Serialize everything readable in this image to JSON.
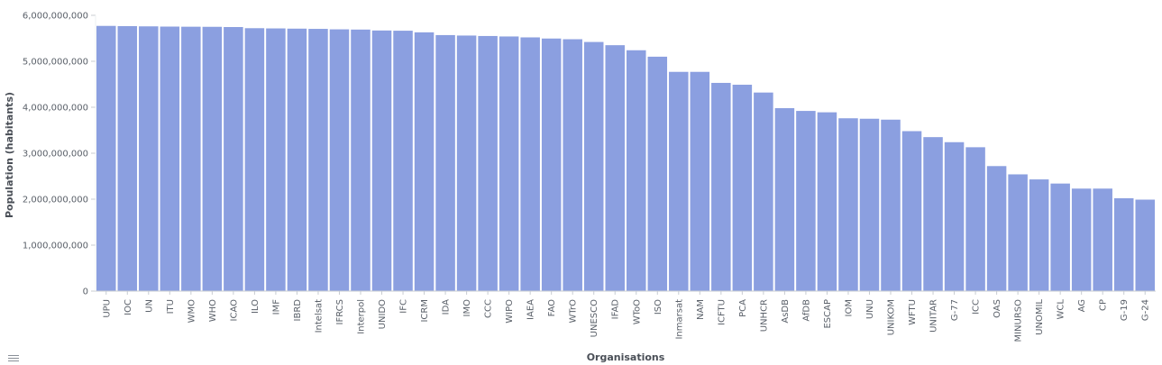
{
  "colors": {
    "bar": "#8b9fe0",
    "axis": "#c8ccd2",
    "text": "#5a6069"
  },
  "legend_toggle_icon": "list-icon",
  "chart_data": {
    "type": "bar",
    "xlabel": "Organisations",
    "ylabel": "Population (habitants)",
    "ylim": [
      0,
      6000000000
    ],
    "yticks": [
      0,
      1000000000,
      2000000000,
      3000000000,
      4000000000,
      5000000000,
      6000000000
    ],
    "ytick_labels": [
      "0",
      "1,000,000,000",
      "2,000,000,000",
      "3,000,000,000",
      "4,000,000,000",
      "5,000,000,000",
      "6,000,000,000"
    ],
    "grid": false,
    "categories": [
      "UPU",
      "IOC",
      "UN",
      "ITU",
      "WMO",
      "WHO",
      "ICAO",
      "ILO",
      "IMF",
      "IBRD",
      "Intelsat",
      "IFRCS",
      "Interpol",
      "UNIDO",
      "IFC",
      "ICRM",
      "IDA",
      "IMO",
      "CCC",
      "WIPO",
      "IAEA",
      "FAO",
      "WTrO",
      "UNESCO",
      "IFAD",
      "WToO",
      "ISO",
      "Inmarsat",
      "NAM",
      "ICFTU",
      "PCA",
      "UNHCR",
      "AsDB",
      "AfDB",
      "ESCAP",
      "IOM",
      "UNU",
      "UNIKOM",
      "WFTU",
      "UNITAR",
      "G-77",
      "ICC",
      "OAS",
      "MINURSO",
      "UNOMIL",
      "WCL",
      "AG",
      "CP",
      "G-19",
      "G-24"
    ],
    "values": [
      5770000000,
      5765000000,
      5760000000,
      5755000000,
      5752000000,
      5750000000,
      5745000000,
      5720000000,
      5715000000,
      5710000000,
      5705000000,
      5695000000,
      5690000000,
      5670000000,
      5665000000,
      5630000000,
      5570000000,
      5560000000,
      5550000000,
      5540000000,
      5520000000,
      5495000000,
      5480000000,
      5420000000,
      5350000000,
      5240000000,
      5100000000,
      4770000000,
      4770000000,
      4530000000,
      4490000000,
      4320000000,
      3980000000,
      3920000000,
      3890000000,
      3760000000,
      3750000000,
      3730000000,
      3480000000,
      3350000000,
      3240000000,
      3130000000,
      2720000000,
      2540000000,
      2430000000,
      2340000000,
      2230000000,
      2230000000,
      2020000000,
      1990000000
    ]
  }
}
